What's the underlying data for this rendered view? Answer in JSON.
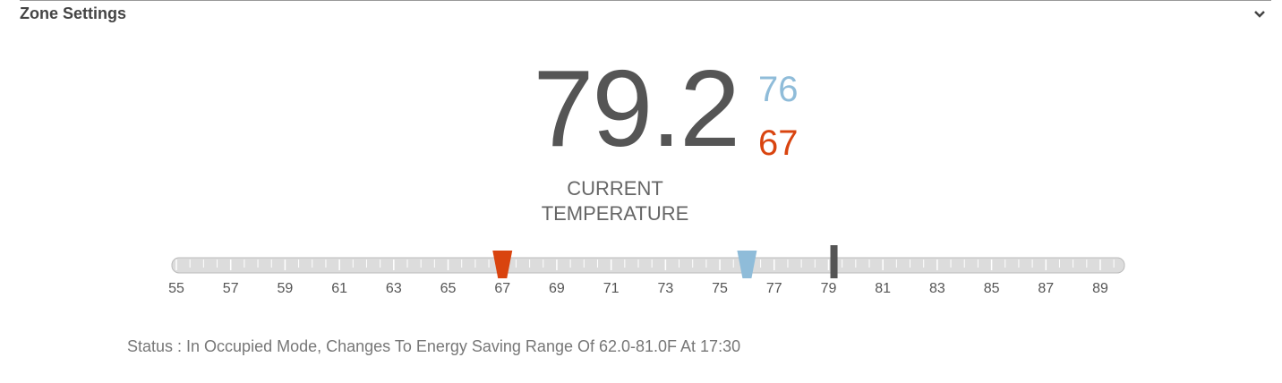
{
  "header": {
    "title": "Zone Settings"
  },
  "thermostat": {
    "current": 79.2,
    "current_label": "CURRENT TEMPERATURE",
    "cooling_setpoint": 76,
    "heating_setpoint": 67,
    "scale": {
      "range": [
        55,
        89
      ],
      "ticks": [
        55,
        57,
        59,
        61,
        63,
        65,
        67,
        69,
        71,
        73,
        75,
        77,
        79,
        81,
        83,
        85,
        87,
        89
      ]
    }
  },
  "status": "Status : In Occupied Mode, Changes To Energy Saving Range Of 62.0-81.0F At 17:30"
}
